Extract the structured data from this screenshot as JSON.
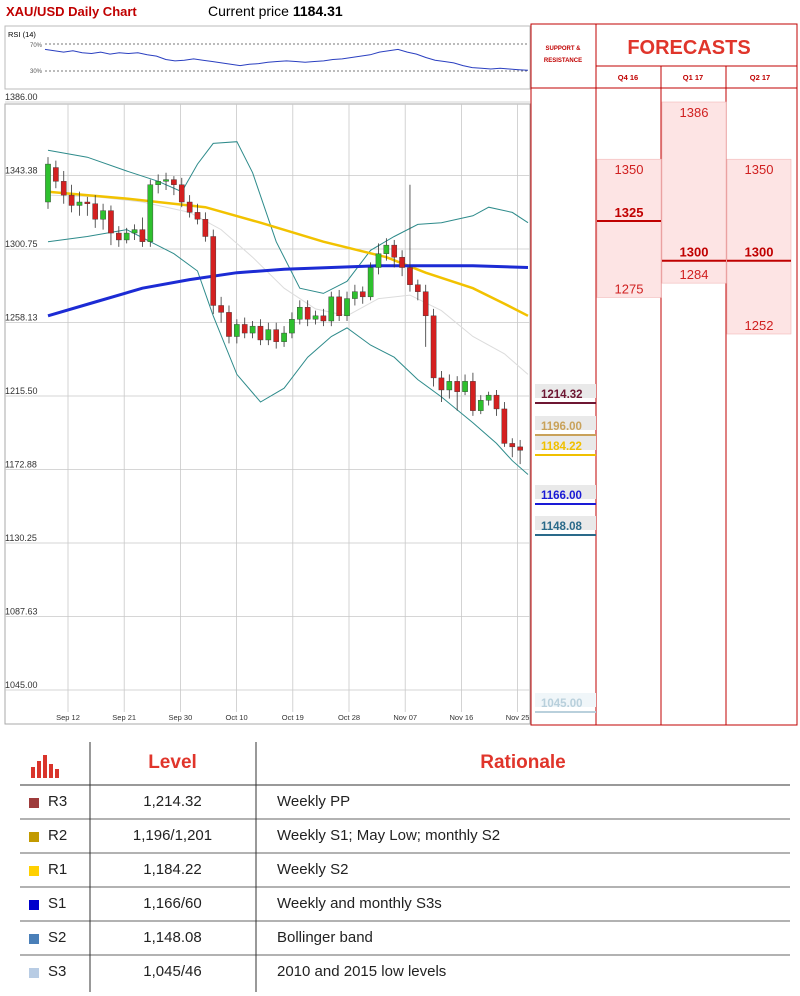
{
  "header": {
    "chart_title": "XAU/USD Daily Chart",
    "price_label": "Current price",
    "price_value": "1184.31"
  },
  "rsi": {
    "label": "RSI (14)",
    "upper": "70%",
    "lower": "30%"
  },
  "panel": {
    "sr_title_1": "SUPPORT &",
    "sr_title_2": "RESISTANCE",
    "forecasts_title": "FORECASTS",
    "quarters": [
      "Q4 16",
      "Q1 17",
      "Q2 17"
    ]
  },
  "sr_levels": [
    {
      "value": "1214.32",
      "color": "#6e1733"
    },
    {
      "value": "1196.00",
      "color": "#c9a25a"
    },
    {
      "value": "1184.22",
      "color": "#f0c000"
    },
    {
      "value": "1166.00",
      "color": "#1a1ad6"
    },
    {
      "value": "1148.08",
      "color": "#2a6a8a"
    },
    {
      "value": "1045.00",
      "color": "#b9d0dc"
    }
  ],
  "forecasts": {
    "Q4 16": {
      "high": "1350",
      "mid": "1325",
      "low": "1275"
    },
    "Q1 17": {
      "high": "1386",
      "mid": "1300",
      "low": "1284"
    },
    "Q2 17": {
      "high": "1350",
      "mid": "1300",
      "low": "1252"
    }
  },
  "table": {
    "header_level": "Level",
    "header_rationale": "Rationale",
    "rows": [
      {
        "code": "R3",
        "level": "1,214.32",
        "rationale": "Weekly PP",
        "color": "#9e3b3b"
      },
      {
        "code": "R2",
        "level": "1,196/1,201",
        "rationale": "Weekly S1; May Low; monthly S2",
        "color": "#c29a00"
      },
      {
        "code": "R1",
        "level": "1,184.22",
        "rationale": "Weekly S2",
        "color": "#ffd000"
      },
      {
        "code": "S1",
        "level": "1,166/60",
        "rationale": "Weekly and monthly S3s",
        "color": "#0000cc"
      },
      {
        "code": "S2",
        "level": "1,148.08",
        "rationale": "Bollinger band",
        "color": "#4a7fb8"
      },
      {
        "code": "S3",
        "level": "1,045/46",
        "rationale": "2010 and 2015 low levels",
        "color": "#b8cce4"
      }
    ]
  },
  "chart_data": {
    "type": "candlestick",
    "title": "XAU/USD Daily Chart",
    "ylim": [
      1035,
      1390
    ],
    "y_ticks": [
      "1386.00",
      "1343.38",
      "1300.75",
      "1258.13",
      "1215.50",
      "1172.88",
      "1130.25",
      "1087.63",
      "1045.00"
    ],
    "x_ticks": [
      "Sep 12",
      "Sep 21",
      "Sep 30",
      "Oct 10",
      "Oct 19",
      "Oct 28",
      "Nov 07",
      "Nov 16",
      "Nov 25"
    ],
    "candles": [
      [
        1328,
        1350,
        1354,
        1324
      ],
      [
        1348,
        1340,
        1352,
        1336
      ],
      [
        1340,
        1332,
        1346,
        1327
      ],
      [
        1332,
        1326,
        1338,
        1322
      ],
      [
        1326,
        1328,
        1334,
        1320
      ],
      [
        1328,
        1327,
        1331,
        1320
      ],
      [
        1327,
        1318,
        1332,
        1313
      ],
      [
        1318,
        1323,
        1327,
        1312
      ],
      [
        1323,
        1310,
        1326,
        1303
      ],
      [
        1310,
        1306,
        1314,
        1302
      ],
      [
        1306,
        1310,
        1313,
        1304
      ],
      [
        1310,
        1312,
        1315,
        1306
      ],
      [
        1312,
        1305,
        1319,
        1302
      ],
      [
        1305,
        1338,
        1341,
        1302
      ],
      [
        1338,
        1340,
        1344,
        1333
      ],
      [
        1340,
        1341,
        1345,
        1335
      ],
      [
        1341,
        1338,
        1343,
        1332
      ],
      [
        1338,
        1328,
        1342,
        1325
      ],
      [
        1328,
        1322,
        1332,
        1319
      ],
      [
        1322,
        1318,
        1327,
        1315
      ],
      [
        1318,
        1308,
        1322,
        1305
      ],
      [
        1308,
        1268,
        1312,
        1263
      ],
      [
        1268,
        1264,
        1273,
        1258
      ],
      [
        1264,
        1250,
        1268,
        1246
      ],
      [
        1250,
        1257,
        1260,
        1246
      ],
      [
        1257,
        1252,
        1261,
        1249
      ],
      [
        1252,
        1256,
        1259,
        1249
      ],
      [
        1256,
        1248,
        1260,
        1245
      ],
      [
        1248,
        1254,
        1258,
        1245
      ],
      [
        1254,
        1247,
        1258,
        1243
      ],
      [
        1247,
        1252,
        1256,
        1244
      ],
      [
        1252,
        1260,
        1264,
        1249
      ],
      [
        1260,
        1267,
        1271,
        1257
      ],
      [
        1267,
        1260,
        1271,
        1256
      ],
      [
        1260,
        1262,
        1265,
        1257
      ],
      [
        1262,
        1259,
        1266,
        1256
      ],
      [
        1259,
        1273,
        1276,
        1256
      ],
      [
        1273,
        1262,
        1277,
        1259
      ],
      [
        1262,
        1272,
        1276,
        1259
      ],
      [
        1272,
        1276,
        1280,
        1268
      ],
      [
        1276,
        1273,
        1279,
        1269
      ],
      [
        1273,
        1290,
        1293,
        1271
      ],
      [
        1290,
        1298,
        1304,
        1286
      ],
      [
        1298,
        1303,
        1307,
        1294
      ],
      [
        1303,
        1296,
        1306,
        1290
      ],
      [
        1296,
        1290,
        1300,
        1285
      ],
      [
        1290,
        1280,
        1338,
        1276
      ],
      [
        1280,
        1276,
        1283,
        1271
      ],
      [
        1276,
        1262,
        1280,
        1244
      ],
      [
        1262,
        1226,
        1266,
        1221
      ],
      [
        1226,
        1219,
        1230,
        1212
      ],
      [
        1219,
        1224,
        1228,
        1214
      ],
      [
        1224,
        1218,
        1227,
        1207
      ],
      [
        1218,
        1224,
        1228,
        1216
      ],
      [
        1224,
        1207,
        1229,
        1204
      ],
      [
        1207,
        1213,
        1216,
        1205
      ],
      [
        1213,
        1216,
        1218,
        1210
      ],
      [
        1216,
        1208,
        1219,
        1204
      ],
      [
        1208,
        1188,
        1212,
        1186
      ],
      [
        1188,
        1186,
        1191,
        1180
      ],
      [
        1186,
        1184,
        1190,
        1176
      ]
    ],
    "ma_yellow": [
      [
        0,
        1334
      ],
      [
        10,
        1330
      ],
      [
        20,
        1325
      ],
      [
        27,
        1316
      ],
      [
        35,
        1305
      ],
      [
        43,
        1296
      ],
      [
        48,
        1287
      ],
      [
        54,
        1278
      ],
      [
        58,
        1269
      ],
      [
        61,
        1262
      ]
    ],
    "ma_blue": [
      [
        0,
        1262
      ],
      [
        6,
        1270
      ],
      [
        12,
        1278
      ],
      [
        18,
        1283
      ],
      [
        24,
        1287
      ],
      [
        30,
        1289
      ],
      [
        36,
        1290
      ],
      [
        42,
        1291
      ],
      [
        48,
        1291
      ],
      [
        54,
        1291
      ],
      [
        61,
        1290
      ]
    ],
    "boll_upper": [
      [
        0,
        1358
      ],
      [
        5,
        1354
      ],
      [
        10,
        1346
      ],
      [
        14,
        1340
      ],
      [
        17,
        1334
      ],
      [
        19,
        1350
      ],
      [
        21,
        1362
      ],
      [
        24,
        1363
      ],
      [
        26,
        1345
      ],
      [
        29,
        1305
      ],
      [
        32,
        1278
      ],
      [
        35,
        1275
      ],
      [
        38,
        1282
      ],
      [
        41,
        1300
      ],
      [
        44,
        1308
      ],
      [
        47,
        1315
      ],
      [
        50,
        1316
      ],
      [
        54,
        1320
      ],
      [
        56,
        1325
      ],
      [
        59,
        1322
      ],
      [
        61,
        1316
      ]
    ],
    "boll_lower": [
      [
        0,
        1305
      ],
      [
        5,
        1308
      ],
      [
        10,
        1312
      ],
      [
        13,
        1305
      ],
      [
        16,
        1298
      ],
      [
        19,
        1288
      ],
      [
        21,
        1262
      ],
      [
        24,
        1228
      ],
      [
        27,
        1212
      ],
      [
        30,
        1220
      ],
      [
        33,
        1238
      ],
      [
        36,
        1250
      ],
      [
        38,
        1255
      ],
      [
        41,
        1245
      ],
      [
        44,
        1238
      ],
      [
        47,
        1225
      ],
      [
        50,
        1215
      ],
      [
        54,
        1200
      ],
      [
        57,
        1188
      ],
      [
        59,
        1178
      ],
      [
        61,
        1170
      ]
    ],
    "boll_mid": [
      [
        0,
        1332
      ],
      [
        6,
        1331
      ],
      [
        12,
        1328
      ],
      [
        18,
        1322
      ],
      [
        22,
        1312
      ],
      [
        26,
        1296
      ],
      [
        30,
        1278
      ],
      [
        34,
        1266
      ],
      [
        38,
        1262
      ],
      [
        42,
        1272
      ],
      [
        46,
        1274
      ],
      [
        50,
        1265
      ],
      [
        54,
        1250
      ],
      [
        58,
        1240
      ],
      [
        61,
        1228
      ]
    ],
    "rsi_values": [
      62,
      60,
      58,
      60,
      57,
      56,
      58,
      55,
      57,
      56,
      57,
      54,
      52,
      47,
      45,
      46,
      48,
      46,
      44,
      42,
      40,
      38,
      40,
      41,
      43,
      44,
      45,
      44,
      43,
      44,
      45,
      47,
      48,
      50,
      52,
      54,
      58,
      60,
      62,
      58,
      55,
      50,
      46,
      44,
      42,
      38,
      35,
      34,
      33,
      34,
      33,
      32,
      31
    ]
  }
}
